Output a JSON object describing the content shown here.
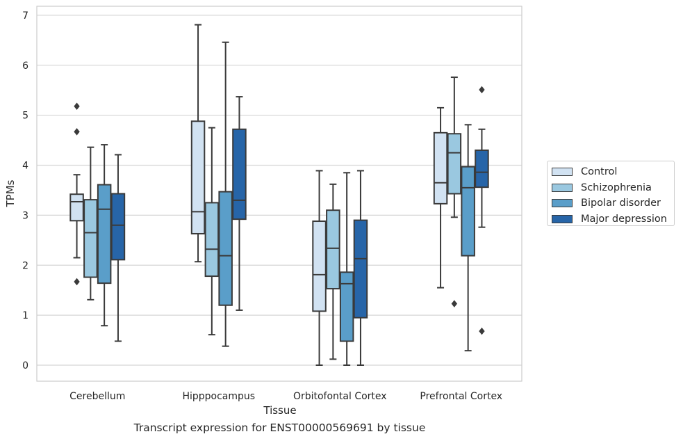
{
  "chart_data": {
    "type": "box",
    "title": "Transcript expression for ENST00000569691 by tissue",
    "xlabel": "Tissue",
    "ylabel": "TPMs",
    "ylim": [
      -0.32,
      7.18
    ],
    "yticks": [
      0,
      1,
      2,
      3,
      4,
      5,
      6,
      7
    ],
    "grid": "horizontal",
    "legend_position": "right",
    "categories": [
      "Cerebellum",
      "Hipppocampus",
      "Orbitofontal Cortex",
      "Prefrontal Cortex"
    ],
    "series": [
      {
        "name": "Control",
        "color": "#d1e2f2",
        "boxes": [
          {
            "whislo": 2.15,
            "q1": 2.89,
            "med": 3.27,
            "q3": 3.42,
            "whishi": 3.81,
            "fliers": [
              5.18,
              4.67,
              1.67
            ]
          },
          {
            "whislo": 2.07,
            "q1": 2.63,
            "med": 3.07,
            "q3": 4.88,
            "whishi": 6.81,
            "fliers": []
          },
          {
            "whislo": 0.0,
            "q1": 1.08,
            "med": 1.81,
            "q3": 2.88,
            "whishi": 3.89,
            "fliers": []
          },
          {
            "whislo": 1.55,
            "q1": 3.23,
            "med": 3.65,
            "q3": 4.65,
            "whishi": 5.15,
            "fliers": []
          }
        ]
      },
      {
        "name": "Schizophrenia",
        "color": "#9ac8e0",
        "boxes": [
          {
            "whislo": 1.31,
            "q1": 1.76,
            "med": 2.65,
            "q3": 3.31,
            "whishi": 4.36,
            "fliers": []
          },
          {
            "whislo": 0.61,
            "q1": 1.78,
            "med": 2.32,
            "q3": 3.25,
            "whishi": 4.75,
            "fliers": []
          },
          {
            "whislo": 0.12,
            "q1": 1.53,
            "med": 2.34,
            "q3": 3.1,
            "whishi": 3.62,
            "fliers": []
          },
          {
            "whislo": 2.96,
            "q1": 3.43,
            "med": 4.25,
            "q3": 4.63,
            "whishi": 5.76,
            "fliers": [
              1.23
            ]
          }
        ]
      },
      {
        "name": "Bipolar disorder",
        "color": "#5a9ec9",
        "boxes": [
          {
            "whislo": 0.79,
            "q1": 1.64,
            "med": 3.12,
            "q3": 3.61,
            "whishi": 4.41,
            "fliers": []
          },
          {
            "whislo": 0.38,
            "q1": 1.2,
            "med": 2.19,
            "q3": 3.47,
            "whishi": 6.46,
            "fliers": []
          },
          {
            "whislo": 0.0,
            "q1": 0.48,
            "med": 1.63,
            "q3": 1.86,
            "whishi": 3.85,
            "fliers": []
          },
          {
            "whislo": 0.29,
            "q1": 2.19,
            "med": 3.55,
            "q3": 3.97,
            "whishi": 4.81,
            "fliers": []
          }
        ]
      },
      {
        "name": "Major depression",
        "color": "#2765a8",
        "boxes": [
          {
            "whislo": 0.48,
            "q1": 2.11,
            "med": 2.8,
            "q3": 3.43,
            "whishi": 4.21,
            "fliers": []
          },
          {
            "whislo": 1.1,
            "q1": 2.92,
            "med": 3.3,
            "q3": 4.72,
            "whishi": 5.37,
            "fliers": []
          },
          {
            "whislo": 0.0,
            "q1": 0.95,
            "med": 2.13,
            "q3": 2.9,
            "whishi": 3.89,
            "fliers": []
          },
          {
            "whislo": 2.76,
            "q1": 3.56,
            "med": 3.86,
            "q3": 4.3,
            "whishi": 4.72,
            "fliers": [
              5.51,
              0.68
            ]
          }
        ]
      }
    ]
  }
}
